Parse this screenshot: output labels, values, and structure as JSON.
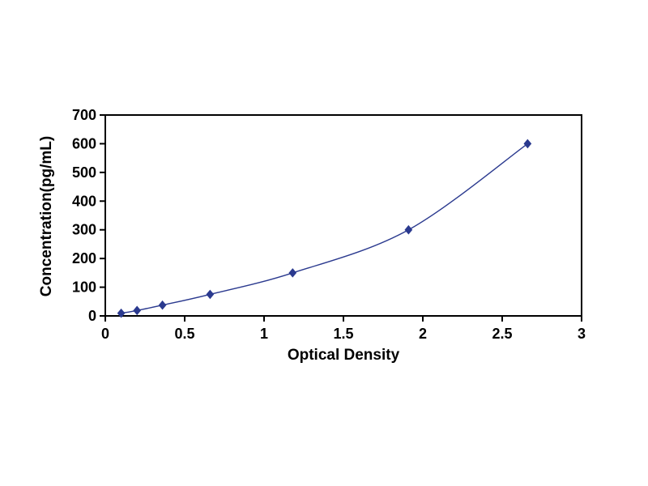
{
  "chart_data": {
    "type": "line",
    "title": "",
    "xlabel": "Optical Density",
    "ylabel": "Concentration(pg/mL)",
    "x": [
      0.1,
      0.2,
      0.36,
      0.66,
      1.18,
      1.91,
      2.66
    ],
    "y": [
      9.4,
      18.8,
      37.5,
      75,
      150,
      300,
      600
    ],
    "xlim": [
      0,
      3
    ],
    "ylim": [
      0,
      700
    ],
    "xticks": [
      0,
      0.5,
      1,
      1.5,
      2,
      2.5,
      3
    ],
    "yticks": [
      0,
      100,
      200,
      300,
      400,
      500,
      600,
      700
    ],
    "grid": false,
    "legend_position": "none",
    "marker": "diamond",
    "line_color": "#2b3a8f",
    "marker_color": "#2b3a8f",
    "axis_color": "#000000",
    "background_color": "#ffffff"
  }
}
